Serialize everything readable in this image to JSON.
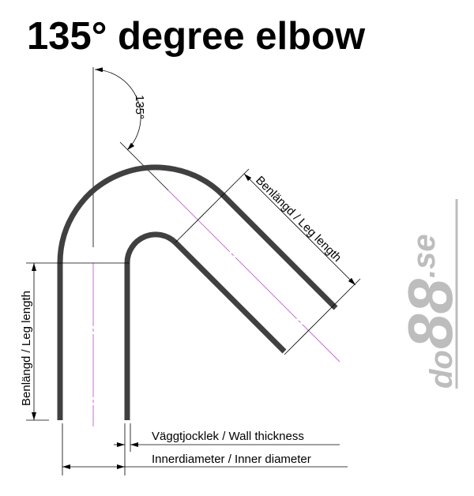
{
  "title": "135° degree elbow",
  "angle_label": "135°",
  "dimensions": {
    "leg_length_diagonal": "Benlängd / Leg length",
    "leg_length_vertical": "Benlängd / Leg length",
    "wall_thickness": "Väggtjocklek / Wall thickness",
    "inner_diameter": "Innerdiameter / Inner diameter"
  },
  "logo": {
    "text_main": "do",
    "text_digits": "88",
    "text_suffix": ".se"
  },
  "colors": {
    "pipe": "#404040",
    "centerline": "#c060d0",
    "logo": "#bdbdbd"
  }
}
